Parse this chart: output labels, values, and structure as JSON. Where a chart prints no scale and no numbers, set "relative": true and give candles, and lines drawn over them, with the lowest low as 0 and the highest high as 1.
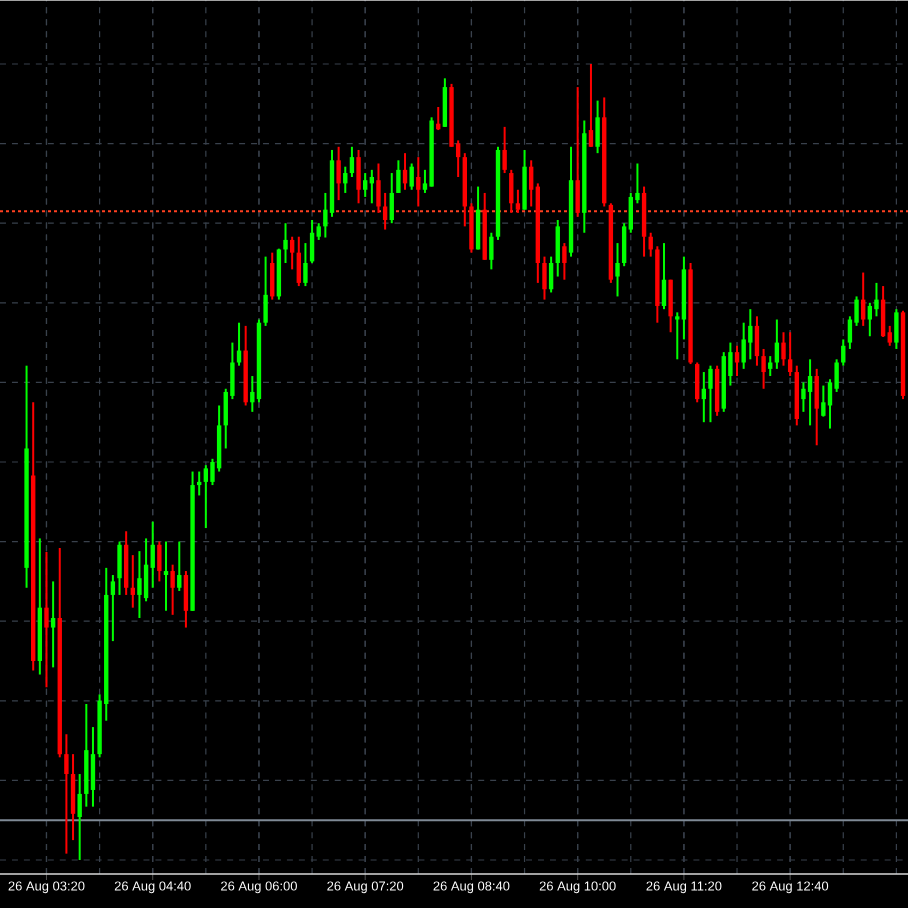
{
  "chart_data": {
    "type": "candlestick",
    "relative": true,
    "categories": [
      null,
      null,
      null,
      "26 Aug 03:20",
      null,
      null,
      null,
      null,
      null,
      null,
      null,
      null,
      null,
      null,
      null,
      null,
      null,
      null,
      null,
      "26 Aug 04:40",
      null,
      null,
      null,
      null,
      null,
      null,
      null,
      null,
      null,
      null,
      null,
      null,
      null,
      null,
      null,
      "26 Aug 06:00",
      null,
      null,
      null,
      null,
      null,
      null,
      null,
      null,
      null,
      null,
      null,
      null,
      null,
      null,
      null,
      "26 Aug 07:20",
      null,
      null,
      null,
      null,
      null,
      null,
      null,
      null,
      null,
      null,
      null,
      null,
      null,
      null,
      null,
      "26 Aug 08:40",
      null,
      null,
      null,
      null,
      null,
      null,
      null,
      null,
      null,
      null,
      null,
      null,
      null,
      null,
      null,
      "26 Aug 10:00",
      null,
      null,
      null,
      null,
      null,
      null,
      null,
      null,
      null,
      null,
      null,
      null,
      null,
      null,
      null,
      "26 Aug 11:20",
      null,
      null,
      null,
      null,
      null,
      null,
      null,
      null,
      null,
      null,
      null,
      null,
      null,
      null,
      null,
      "26 Aug 12:40",
      null,
      null,
      null,
      null,
      null,
      null,
      null,
      null,
      null,
      null,
      null,
      null,
      null,
      null,
      null,
      null,
      null
    ],
    "ohlc": [
      [
        0.367,
        0.621,
        0.342,
        0.517
      ],
      [
        0.483,
        0.575,
        0.238,
        0.25
      ],
      [
        0.25,
        0.404,
        0.233,
        0.317
      ],
      [
        0.317,
        0.387,
        0.217,
        0.292
      ],
      [
        0.292,
        0.35,
        0.242,
        0.304
      ],
      [
        0.304,
        0.392,
        0.129,
        0.133
      ],
      [
        0.133,
        0.158,
        0.008,
        0.108
      ],
      [
        0.108,
        0.133,
        0.025,
        0.058
      ],
      [
        0.054,
        0.108,
        0,
        0.083
      ],
      [
        0.083,
        0.196,
        0.067,
        0.138
      ],
      [
        0.088,
        0.167,
        0.067,
        0.133
      ],
      [
        0.133,
        0.208,
        0.129,
        0.2
      ],
      [
        0.196,
        0.367,
        0.175,
        0.333
      ],
      [
        0.333,
        0.358,
        0.275,
        0.35
      ],
      [
        0.354,
        0.4,
        0.333,
        0.396
      ],
      [
        0.396,
        0.413,
        0.333,
        0.342
      ],
      [
        0.342,
        0.383,
        0.317,
        0.333
      ],
      [
        0.333,
        0.388,
        0.304,
        0.354
      ],
      [
        0.329,
        0.404,
        0.325,
        0.371
      ],
      [
        0.367,
        0.425,
        0.342,
        0.396
      ],
      [
        0.396,
        0.4,
        0.35,
        0.363
      ],
      [
        0.358,
        0.4,
        0.313,
        0.363
      ],
      [
        0.363,
        0.371,
        0.308,
        0.342
      ],
      [
        0.342,
        0.4,
        0.338,
        0.358
      ],
      [
        0.358,
        0.363,
        0.292,
        0.313
      ],
      [
        0.313,
        0.488,
        0.313,
        0.471
      ],
      [
        0.471,
        0.488,
        0.458,
        0.475
      ],
      [
        0.475,
        0.496,
        0.417,
        0.492
      ],
      [
        0.475,
        0.504,
        0.471,
        0.5
      ],
      [
        0.492,
        0.571,
        0.488,
        0.546
      ],
      [
        0.546,
        0.592,
        0.517,
        0.588
      ],
      [
        0.583,
        0.65,
        0.579,
        0.625
      ],
      [
        0.625,
        0.675,
        0.621,
        0.64
      ],
      [
        0.64,
        0.671,
        0.571,
        0.575
      ],
      [
        0.575,
        0.608,
        0.563,
        0.588
      ],
      [
        0.579,
        0.679,
        0.575,
        0.675
      ],
      [
        0.675,
        0.758,
        0.671,
        0.71
      ],
      [
        0.75,
        0.763,
        0.704,
        0.708
      ],
      [
        0.708,
        0.768,
        0.704,
        0.767
      ],
      [
        0.767,
        0.8,
        0.75,
        0.779
      ],
      [
        0.779,
        0.783,
        0.742,
        0.763
      ],
      [
        0.763,
        0.783,
        0.721,
        0.725
      ],
      [
        0.725,
        0.775,
        0.721,
        0.75
      ],
      [
        0.752,
        0.804,
        0.75,
        0.788
      ],
      [
        0.783,
        0.8,
        0.779,
        0.796
      ],
      [
        0.796,
        0.838,
        0.782,
        0.817
      ],
      [
        0.813,
        0.892,
        0.808,
        0.879
      ],
      [
        0.879,
        0.896,
        0.829,
        0.85
      ],
      [
        0.85,
        0.871,
        0.838,
        0.863
      ],
      [
        0.863,
        0.896,
        0.858,
        0.883
      ],
      [
        0.883,
        0.892,
        0.825,
        0.842
      ],
      [
        0.842,
        0.863,
        0.833,
        0.854
      ],
      [
        0.85,
        0.867,
        0.825,
        0.858
      ],
      [
        0.854,
        0.875,
        0.813,
        0.821
      ],
      [
        0.821,
        0.838,
        0.792,
        0.804
      ],
      [
        0.804,
        0.863,
        0.8,
        0.838
      ],
      [
        0.838,
        0.879,
        0.838,
        0.867
      ],
      [
        0.867,
        0.888,
        0.842,
        0.85
      ],
      [
        0.846,
        0.875,
        0.842,
        0.871
      ],
      [
        0.858,
        0.883,
        0.821,
        0.842
      ],
      [
        0.842,
        0.867,
        0.838,
        0.85
      ],
      [
        0.846,
        0.933,
        0.846,
        0.929
      ],
      [
        0.925,
        0.946,
        0.917,
        0.918
      ],
      [
        0.921,
        0.982,
        0.921,
        0.971
      ],
      [
        0.971,
        0.975,
        0.896,
        0.896
      ],
      [
        0.9,
        0.904,
        0.858,
        0.883
      ],
      [
        0.883,
        0.888,
        0.796,
        0.821
      ],
      [
        0.821,
        0.825,
        0.763,
        0.767
      ],
      [
        0.767,
        0.846,
        0.767,
        0.817
      ],
      [
        0.817,
        0.838,
        0.754,
        0.754
      ],
      [
        0.754,
        0.788,
        0.742,
        0.783
      ],
      [
        0.783,
        0.896,
        0.779,
        0.892
      ],
      [
        0.892,
        0.921,
        0.863,
        0.867
      ],
      [
        0.863,
        0.867,
        0.813,
        0.825
      ],
      [
        0.825,
        0.842,
        0.813,
        0.817
      ],
      [
        0.817,
        0.892,
        0.817,
        0.871
      ],
      [
        0.871,
        0.879,
        0.821,
        0.842
      ],
      [
        0.846,
        0.85,
        0.725,
        0.75
      ],
      [
        0.75,
        0.758,
        0.704,
        0.717
      ],
      [
        0.717,
        0.758,
        0.713,
        0.75
      ],
      [
        0.75,
        0.804,
        0.733,
        0.796
      ],
      [
        0.771,
        0.775,
        0.729,
        0.75
      ],
      [
        0.763,
        0.896,
        0.758,
        0.854
      ],
      [
        0.854,
        0.971,
        0.808,
        0.813
      ],
      [
        0.813,
        0.929,
        0.788,
        0.913
      ],
      [
        0.917,
        1,
        0.896,
        0.896
      ],
      [
        0.896,
        0.954,
        0.888,
        0.933
      ],
      [
        0.933,
        0.958,
        0.821,
        0.825
      ],
      [
        0.823,
        0.825,
        0.725,
        0.729
      ],
      [
        0.733,
        0.775,
        0.708,
        0.75
      ],
      [
        0.75,
        0.8,
        0.746,
        0.796
      ],
      [
        0.792,
        0.838,
        0.788,
        0.833
      ],
      [
        0.829,
        0.875,
        0.825,
        0.838
      ],
      [
        0.838,
        0.846,
        0.758,
        0.783
      ],
      [
        0.783,
        0.788,
        0.758,
        0.767
      ],
      [
        0.767,
        0.771,
        0.675,
        0.696
      ],
      [
        0.696,
        0.775,
        0.692,
        0.729
      ],
      [
        0.729,
        0.729,
        0.663,
        0.683
      ],
      [
        0.679,
        0.688,
        0.629,
        0.683
      ],
      [
        0.679,
        0.758,
        0.654,
        0.742
      ],
      [
        0.742,
        0.75,
        0.623,
        0.625
      ],
      [
        0.623,
        0.625,
        0.575,
        0.579
      ],
      [
        0.579,
        0.613,
        0.55,
        0.592
      ],
      [
        0.592,
        0.621,
        0.55,
        0.617
      ],
      [
        0.617,
        0.621,
        0.558,
        0.563
      ],
      [
        0.567,
        0.638,
        0.563,
        0.633
      ],
      [
        0.608,
        0.65,
        0.596,
        0.638
      ],
      [
        0.638,
        0.646,
        0.608,
        0.625
      ],
      [
        0.625,
        0.675,
        0.617,
        0.654
      ],
      [
        0.65,
        0.692,
        0.629,
        0.671
      ],
      [
        0.671,
        0.683,
        0.621,
        0.633
      ],
      [
        0.633,
        0.642,
        0.592,
        0.613
      ],
      [
        0.617,
        0.633,
        0.608,
        0.625
      ],
      [
        0.625,
        0.679,
        0.617,
        0.65
      ],
      [
        0.65,
        0.663,
        0.621,
        0.629
      ],
      [
        0.629,
        0.663,
        0.608,
        0.613
      ],
      [
        0.613,
        0.621,
        0.546,
        0.554
      ],
      [
        0.579,
        0.6,
        0.563,
        0.592
      ],
      [
        0.588,
        0.629,
        0.546,
        0.608
      ],
      [
        0.608,
        0.617,
        0.521,
        0.567
      ],
      [
        0.558,
        0.596,
        0.557,
        0.575
      ],
      [
        0.571,
        0.604,
        0.542,
        0.6
      ],
      [
        0.592,
        0.629,
        0.588,
        0.625
      ],
      [
        0.625,
        0.654,
        0.621,
        0.646
      ],
      [
        0.65,
        0.683,
        0.642,
        0.679
      ],
      [
        0.675,
        0.708,
        0.671,
        0.704
      ],
      [
        0.704,
        0.738,
        0.671,
        0.679
      ],
      [
        0.679,
        0.7,
        0.658,
        0.696
      ],
      [
        0.692,
        0.725,
        0.683,
        0.704
      ],
      [
        0.704,
        0.721,
        0.657,
        0.658
      ],
      [
        0.663,
        0.671,
        0.646,
        0.65
      ],
      [
        0.65,
        0.692,
        0.642,
        0.688
      ],
      [
        0.688,
        0.69,
        0.579,
        0.583
      ]
    ],
    "colors": [
      "#00ff00",
      "#ff0000",
      "#00ff00",
      "#ff0000",
      "#00ff00",
      "#ff0000",
      "#ff0000",
      "#ff0000",
      "#00ff00",
      "#00ff00",
      "#00ff00",
      "#00ff00",
      "#00ff00",
      "#00ff00",
      "#00ff00",
      "#ff0000",
      "#ff0000",
      "#00ff00",
      "#00ff00",
      "#00ff00",
      "#ff0000",
      "#00ff00",
      "#ff0000",
      "#00ff00",
      "#ff0000",
      "#00ff00",
      "#00ff00",
      "#00ff00",
      "#00ff00",
      "#00ff00",
      "#00ff00",
      "#00ff00",
      "#00ff00",
      "#ff0000",
      "#00ff00",
      "#00ff00",
      "#00ff00",
      "#ff0000",
      "#00ff00",
      "#00ff00",
      "#ff0000",
      "#ff0000",
      "#00ff00",
      "#00ff00",
      "#00ff00",
      "#00ff00",
      "#00ff00",
      "#ff0000",
      "#00ff00",
      "#00ff00",
      "#ff0000",
      "#00ff00",
      "#00ff00",
      "#ff0000",
      "#ff0000",
      "#00ff00",
      "#00ff00",
      "#ff0000",
      "#00ff00",
      "#ff0000",
      "#00ff00",
      "#00ff00",
      "#ff0000",
      "#00ff00",
      "#ff0000",
      "#ff0000",
      "#ff0000",
      "#ff0000",
      "#00ff00",
      "#ff0000",
      "#00ff00",
      "#00ff00",
      "#ff0000",
      "#ff0000",
      "#ff0000",
      "#00ff00",
      "#ff0000",
      "#ff0000",
      "#ff0000",
      "#00ff00",
      "#00ff00",
      "#ff0000",
      "#00ff00",
      "#ff0000",
      "#00ff00",
      "#ff0000",
      "#00ff00",
      "#ff0000",
      "#ff0000",
      "#00ff00",
      "#00ff00",
      "#00ff00",
      "#00ff00",
      "#ff0000",
      "#ff0000",
      "#ff0000",
      "#00ff00",
      "#ff0000",
      "#00ff00",
      "#00ff00",
      "#ff0000",
      "#ff0000",
      "#00ff00",
      "#00ff00",
      "#ff0000",
      "#00ff00",
      "#00ff00",
      "#ff0000",
      "#00ff00",
      "#00ff00",
      "#ff0000",
      "#ff0000",
      "#00ff00",
      "#00ff00",
      "#ff0000",
      "#ff0000",
      "#ff0000",
      "#00ff00",
      "#00ff00",
      "#ff0000",
      "#00ff00",
      "#00ff00",
      "#00ff00",
      "#00ff00",
      "#00ff00",
      "#00ff00",
      "#ff0000",
      "#00ff00",
      "#00ff00",
      "#ff0000",
      "#ff0000",
      "#00ff00",
      "#ff0000"
    ],
    "grid": true,
    "ref_lines": [
      {
        "axis": "y",
        "value": 0.05,
        "color": "#7f8a96"
      },
      {
        "axis": "y",
        "value": 0.815,
        "color": "#ff4020",
        "line_style": "dotted"
      }
    ]
  }
}
